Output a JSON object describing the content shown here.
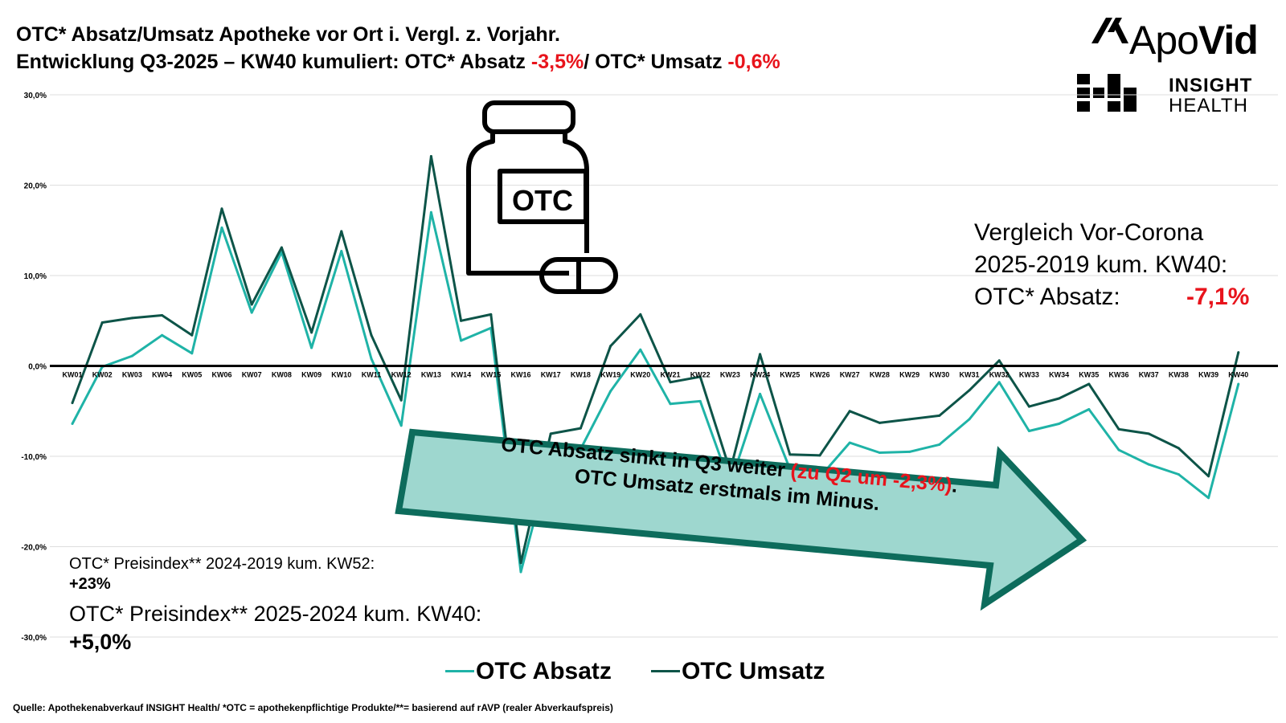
{
  "header": {
    "title_line1": "OTC* Absatz/Umsatz Apotheke vor Ort i. Vergl. z. Vorjahr.",
    "title_line2_a": "Entwicklung Q3-2025 – KW40 kumuliert: OTC* Absatz ",
    "title_line2_b": "-3,5%",
    "title_line2_c": "/ OTC* Umsatz ",
    "title_line2_d": "-0,6%"
  },
  "logo": {
    "apovid_light": "Apo",
    "apovid_bold": "Vid",
    "insight_line1": "INSIGHT",
    "insight_line2": "HEALTH"
  },
  "pill_label": "OTC",
  "vergleich": {
    "line1": "Vergleich Vor-Corona",
    "line2": "2025-2019 kum. KW40:",
    "line3": "OTC* Absatz:",
    "value": "-7,1%"
  },
  "preisindex": {
    "label1": "OTC* Preisindex** 2024-2019 kum. KW52:",
    "value1": "+23%",
    "label2": "OTC* Preisindex** 2025-2024 kum. KW40:",
    "value2": "+5,0%"
  },
  "arrow": {
    "line1_a": "OTC Absatz sinkt in Q3 weiter ",
    "line1_b": "(zu Q2 um -2,3%)",
    "line1_c": ".",
    "line2": "OTC Umsatz erstmals im Minus."
  },
  "legend": {
    "absatz": "OTC Absatz",
    "umsatz": "OTC Umsatz"
  },
  "source": "Quelle: Apothekenabverkauf INSIGHT Health/ *OTC = apothekenpflichtige Produkte/**= basierend auf rAVP (realer Abverkaufspreis)",
  "colors": {
    "absatz": "#1fb3a7",
    "umsatz": "#0d5448",
    "arrow_fill": "#9ed7cf",
    "arrow_stroke": "#0d6c5c",
    "red": "#e8141c"
  },
  "chart_data": {
    "type": "line",
    "ylim": [
      -30,
      30
    ],
    "yticks": [
      "30,0%",
      "20,0%",
      "10,0%",
      "0,0%",
      "-10,0%",
      "-20,0%",
      "-30,0%"
    ],
    "categories": [
      "KW01",
      "KW02",
      "KW03",
      "KW04",
      "KW05",
      "KW06",
      "KW07",
      "KW08",
      "KW09",
      "KW10",
      "KW11",
      "KW12",
      "KW13",
      "KW14",
      "KW15",
      "KW16",
      "KW17",
      "KW18",
      "KW19",
      "KW20",
      "KW21",
      "KW22",
      "KW23",
      "KW24",
      "KW25",
      "KW26",
      "KW27",
      "KW28",
      "KW29",
      "KW30",
      "KW31",
      "KW32",
      "KW33",
      "KW34",
      "KW35",
      "KW36",
      "KW37",
      "KW38",
      "KW39",
      "KW40"
    ],
    "series": [
      {
        "name": "OTC Absatz",
        "values": [
          -6.4,
          -0.1,
          1.1,
          3.4,
          1.4,
          15.3,
          5.9,
          12.6,
          2.0,
          12.7,
          0.8,
          -6.6,
          17.0,
          2.8,
          4.2,
          -22.8,
          -10.2,
          -9.2,
          -2.8,
          1.8,
          -4.2,
          -3.9,
          -13.1,
          -3.1,
          -11.4,
          -12.3,
          -8.5,
          -9.6,
          -9.5,
          -8.7,
          -5.9,
          -1.8,
          -7.2,
          -6.4,
          -4.8,
          -9.3,
          -10.9,
          -12.0,
          -14.6,
          -2.0
        ]
      },
      {
        "name": "OTC Umsatz",
        "values": [
          -4.1,
          4.8,
          5.3,
          5.6,
          3.4,
          17.4,
          6.8,
          13.1,
          3.7,
          14.9,
          3.4,
          -3.8,
          23.2,
          5.0,
          5.7,
          -21.8,
          -7.5,
          -6.9,
          2.2,
          5.7,
          -1.8,
          -1.2,
          -11.6,
          1.3,
          -9.8,
          -9.9,
          -5.0,
          -6.3,
          -5.9,
          -5.5,
          -2.7,
          0.6,
          -4.5,
          -3.6,
          -2.0,
          -7.0,
          -7.5,
          -9.1,
          -12.2,
          1.5
        ]
      }
    ]
  }
}
